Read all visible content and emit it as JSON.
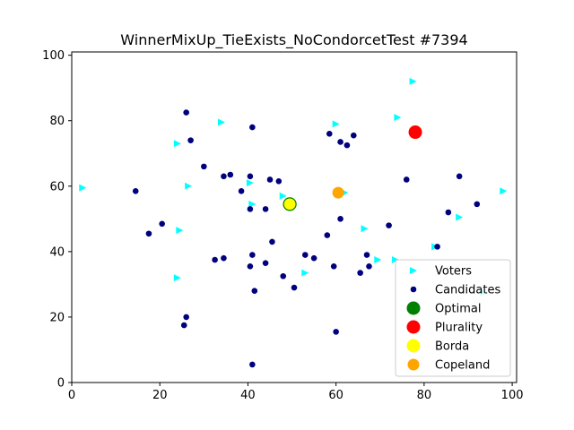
{
  "chart_data": {
    "type": "scatter",
    "title": "WinnerMixUp_TieExists_NoCondorcetTest #7394",
    "xlabel": "",
    "ylabel": "",
    "xlim": [
      0,
      101
    ],
    "ylim": [
      0,
      101
    ],
    "xticks": [
      0,
      20,
      40,
      60,
      80,
      100
    ],
    "yticks": [
      0,
      20,
      40,
      60,
      80,
      100
    ],
    "grid": false,
    "legend_position": "lower-right",
    "series": [
      {
        "name": "Voters",
        "marker": "triangle-right",
        "color": "#00ffff",
        "points": [
          [
            2.5,
            59.5
          ],
          [
            24,
            73
          ],
          [
            26.5,
            60
          ],
          [
            24.5,
            46.5
          ],
          [
            24,
            32
          ],
          [
            34,
            79.5
          ],
          [
            40.5,
            61
          ],
          [
            41,
            54.5
          ],
          [
            48,
            57
          ],
          [
            53,
            33.5
          ],
          [
            60,
            79
          ],
          [
            62,
            58
          ],
          [
            66.5,
            47
          ],
          [
            69.5,
            37.5
          ],
          [
            73.5,
            37.5
          ],
          [
            74,
            81
          ],
          [
            77.5,
            92
          ],
          [
            82.5,
            41.5
          ],
          [
            88,
            50.5
          ],
          [
            98,
            58.5
          ],
          [
            93.5,
            27.5
          ]
        ]
      },
      {
        "name": "Candidates",
        "marker": "circle",
        "color": "#00007f",
        "points": [
          [
            14.5,
            58.5
          ],
          [
            17.5,
            45.5
          ],
          [
            20.5,
            48.5
          ],
          [
            26,
            82.5
          ],
          [
            27,
            74
          ],
          [
            30,
            66
          ],
          [
            34.5,
            63
          ],
          [
            36,
            63.5
          ],
          [
            38.5,
            58.5
          ],
          [
            40.5,
            63
          ],
          [
            40.5,
            53
          ],
          [
            41,
            78
          ],
          [
            44,
            53
          ],
          [
            45,
            62
          ],
          [
            47,
            61.5
          ],
          [
            45.5,
            43
          ],
          [
            44,
            36.5
          ],
          [
            41,
            39
          ],
          [
            40.5,
            35.5
          ],
          [
            41.5,
            28
          ],
          [
            48,
            32.5
          ],
          [
            50.5,
            29
          ],
          [
            53,
            39
          ],
          [
            55,
            38
          ],
          [
            58,
            45
          ],
          [
            58.5,
            76
          ],
          [
            61,
            73.5
          ],
          [
            62.5,
            72.5
          ],
          [
            64,
            75.5
          ],
          [
            61,
            50
          ],
          [
            59.5,
            35.5
          ],
          [
            60,
            15.5
          ],
          [
            65.5,
            33.5
          ],
          [
            67,
            39
          ],
          [
            67.5,
            35.5
          ],
          [
            72,
            48
          ],
          [
            76,
            62
          ],
          [
            83,
            41.5
          ],
          [
            85.5,
            52
          ],
          [
            88,
            63
          ],
          [
            92,
            54.5
          ],
          [
            32.5,
            37.5
          ],
          [
            34.5,
            38
          ],
          [
            25.5,
            17.5
          ],
          [
            26,
            20
          ],
          [
            41,
            5.5
          ]
        ]
      },
      {
        "name": "Optimal",
        "marker": "big-circle",
        "color": "#008000",
        "points": [
          [
            49.5,
            54.5
          ]
        ]
      },
      {
        "name": "Plurality",
        "marker": "big-circle",
        "color": "#ff0000",
        "points": [
          [
            78,
            76.5
          ]
        ]
      },
      {
        "name": "Borda",
        "marker": "big-circle",
        "color": "#ffff00",
        "points": [
          [
            49.5,
            54.5
          ]
        ]
      },
      {
        "name": "Copeland",
        "marker": "circle-medium",
        "color": "#ffa500",
        "points": [
          [
            60.5,
            58
          ]
        ]
      }
    ]
  }
}
